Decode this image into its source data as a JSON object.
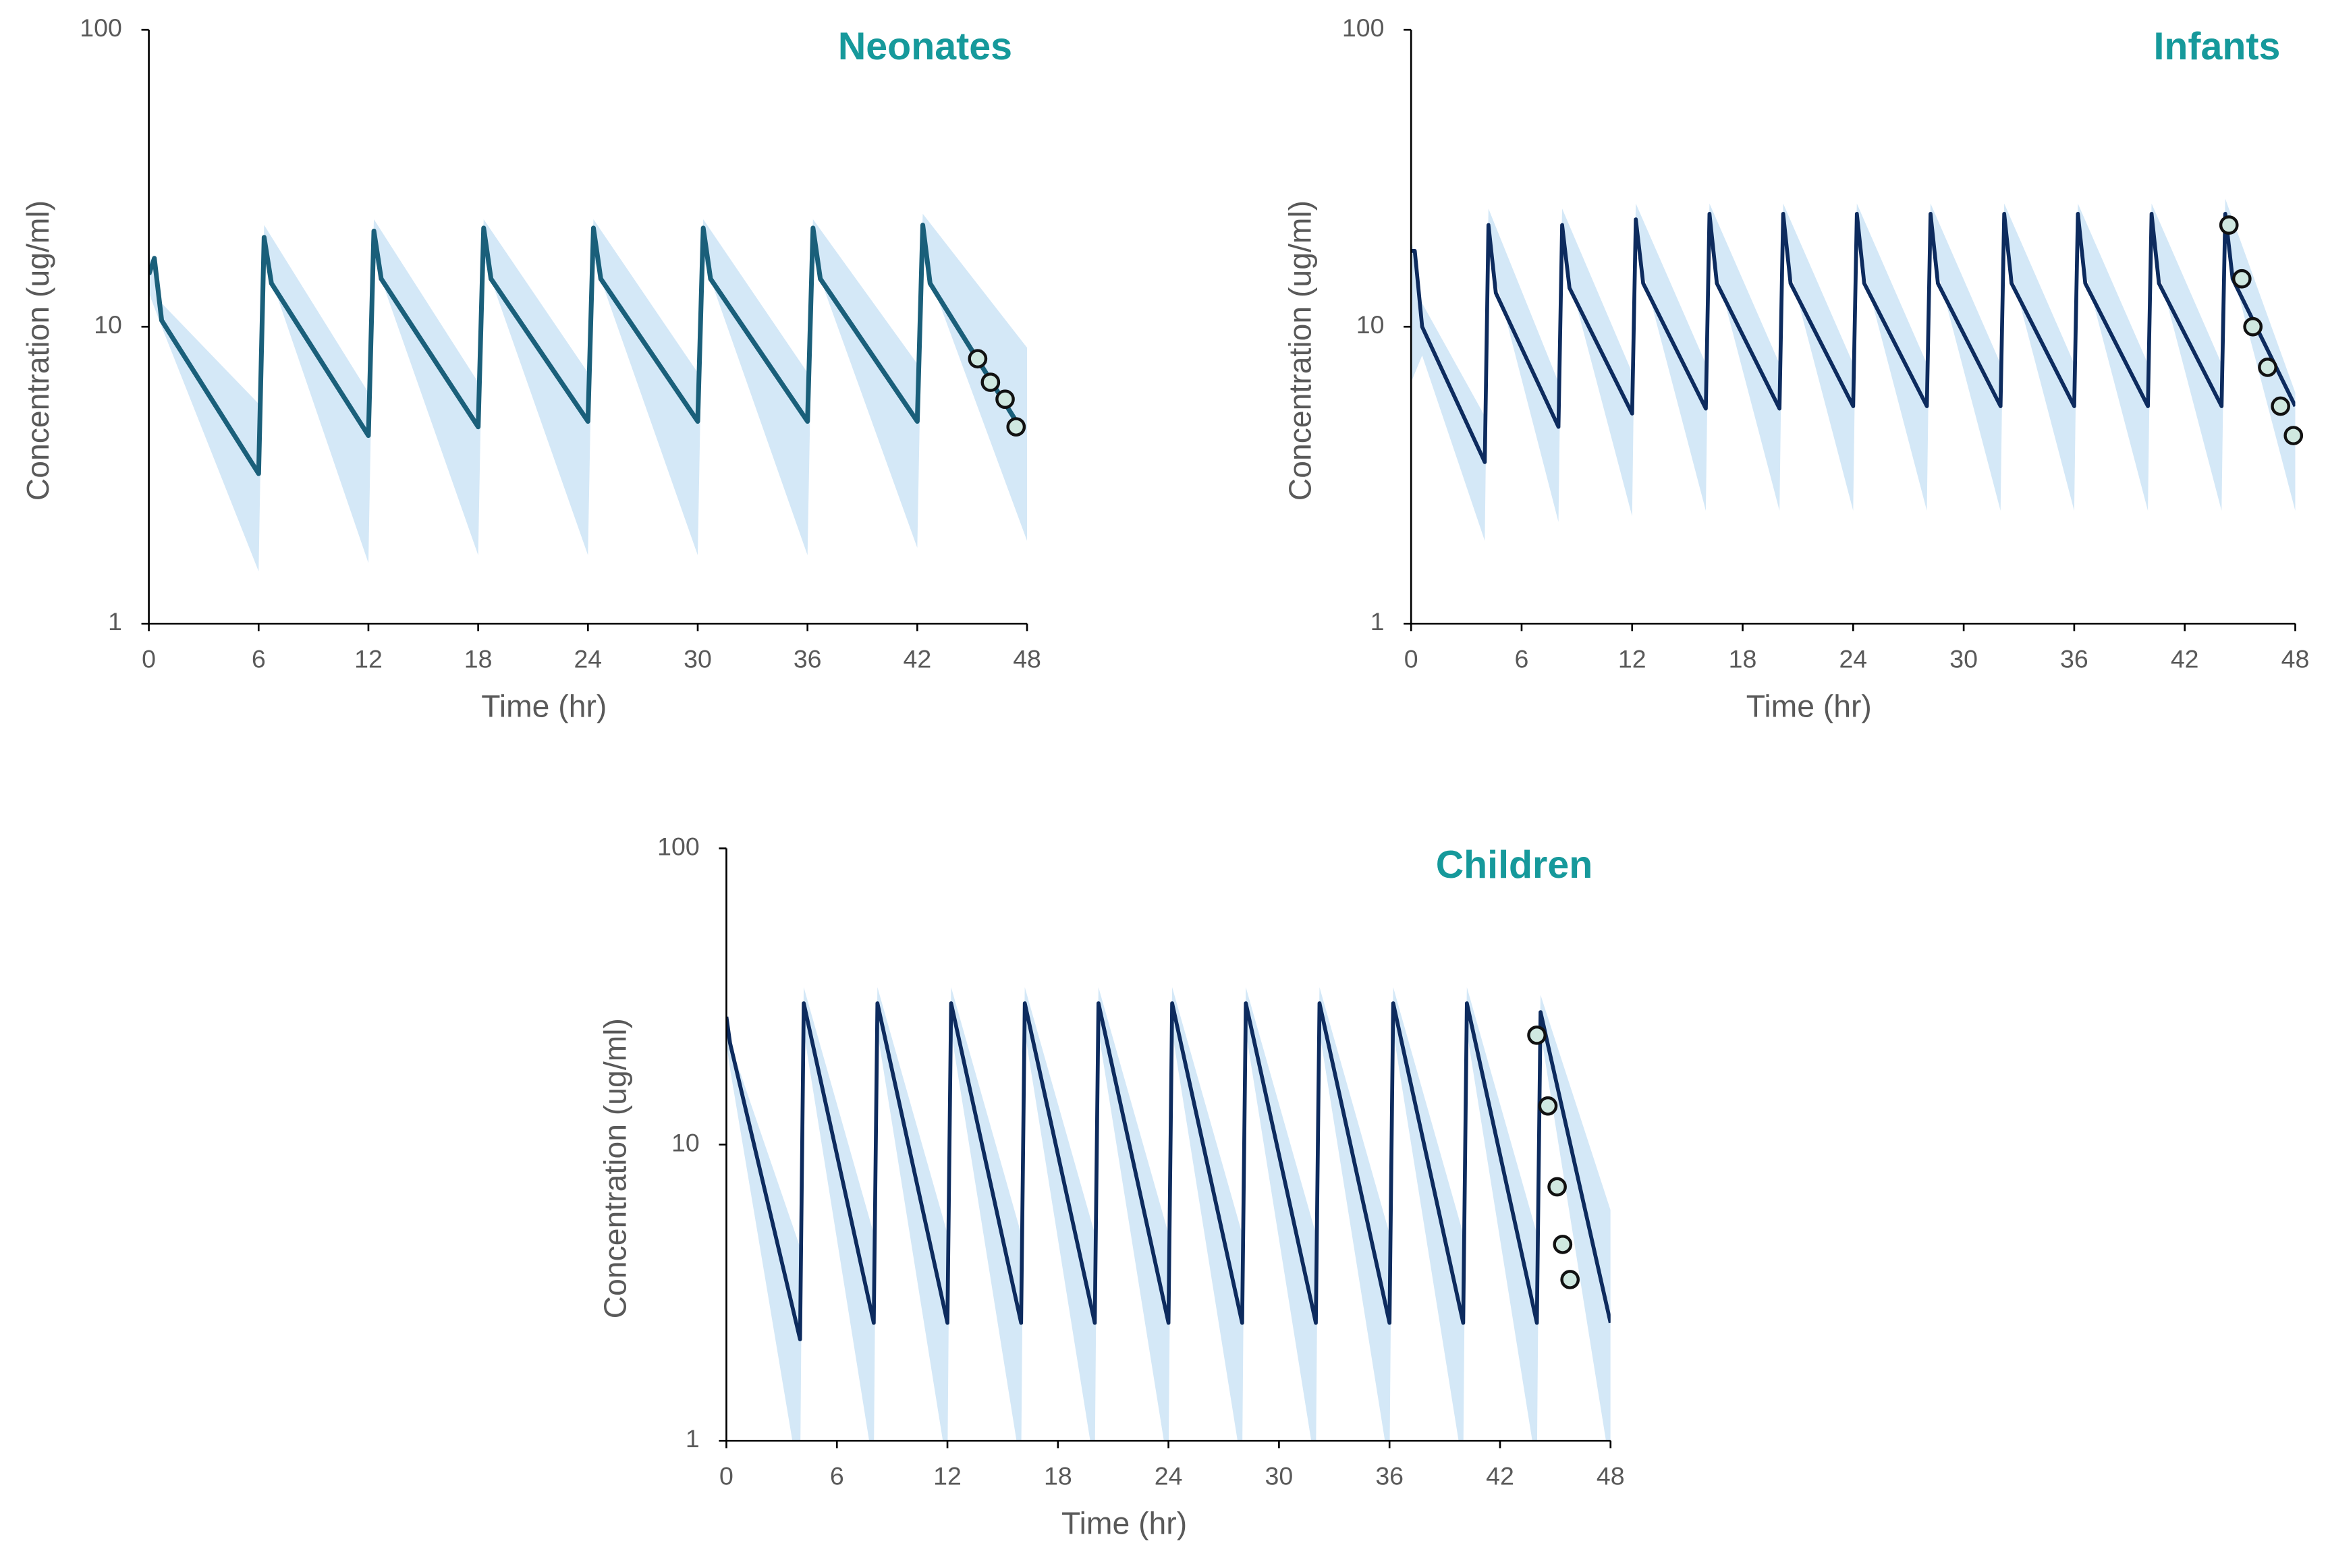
{
  "chart_data": [
    {
      "type": "line",
      "title": "Neonates",
      "x_label": "Time (hr)",
      "y_label": "Concentration (ug/ml)",
      "xlim": [
        0,
        48
      ],
      "ylim": [
        1,
        100
      ],
      "log_y": true,
      "xticks": [
        0,
        6,
        12,
        18,
        24,
        30,
        36,
        42,
        48
      ],
      "yticks": [
        1,
        10,
        100
      ],
      "series": [
        {
          "color": "#1a5f7a",
          "x": [
            0,
            0.3,
            0.7,
            6,
            6.3,
            6.7,
            12,
            12.3,
            12.7,
            18,
            18.3,
            18.7,
            24,
            24.3,
            24.7,
            30,
            30.3,
            30.7,
            36,
            36.3,
            36.7,
            42,
            42.3,
            42.7,
            47.5
          ],
          "values": [
            15,
            17,
            10.5,
            3.2,
            20,
            14,
            4.3,
            21,
            14.5,
            4.6,
            21.5,
            14.5,
            4.8,
            21.5,
            14.5,
            4.8,
            21.5,
            14.5,
            4.8,
            21.5,
            14.5,
            4.8,
            22,
            14,
            4.7
          ]
        }
      ],
      "band": {
        "color": "#d4e8f7",
        "x": [
          0,
          0.7,
          6,
          6.3,
          12,
          12.3,
          18,
          18.3,
          24,
          24.3,
          30,
          30.3,
          36,
          36.3,
          42,
          42.3,
          48
        ],
        "lower": [
          13,
          10,
          1.5,
          17,
          1.6,
          17,
          1.7,
          17,
          1.7,
          17,
          1.7,
          17,
          1.7,
          17,
          1.8,
          17,
          1.9
        ],
        "upper": [
          18,
          12,
          5.5,
          22,
          6,
          23,
          6.5,
          23,
          7,
          23,
          7,
          23,
          7,
          23,
          7.5,
          24,
          8.5
        ]
      },
      "points": {
        "color": "#cfe8e0",
        "x": [
          45.3,
          46.0,
          46.8,
          47.4
        ],
        "values": [
          7.8,
          6.5,
          5.7,
          4.6
        ]
      }
    },
    {
      "type": "line",
      "title": "Infants",
      "x_label": "Time (hr)",
      "y_label": "Concentration (ug/ml)",
      "xlim": [
        0,
        48
      ],
      "ylim": [
        1,
        100
      ],
      "log_y": true,
      "xticks": [
        0,
        6,
        12,
        18,
        24,
        30,
        36,
        42,
        48
      ],
      "yticks": [
        1,
        10,
        100
      ],
      "series": [
        {
          "color": "#0d2b5e",
          "x": [
            0,
            0.2,
            0.6,
            4,
            4.2,
            4.6,
            8,
            8.2,
            8.6,
            12,
            12.2,
            12.6,
            16,
            16.2,
            16.6,
            20,
            20.2,
            20.6,
            24,
            24.2,
            24.6,
            28,
            28.2,
            28.6,
            32,
            32.2,
            32.6,
            36,
            36.2,
            36.6,
            40,
            40.2,
            40.6,
            44,
            44.2,
            44.6,
            48
          ],
          "values": [
            18,
            18,
            10,
            3.5,
            22,
            13,
            4.6,
            22,
            13.5,
            5.1,
            23,
            14,
            5.3,
            24,
            14,
            5.3,
            24,
            14,
            5.4,
            24,
            14,
            5.4,
            24,
            14,
            5.4,
            24,
            14,
            5.4,
            24,
            14,
            5.4,
            24,
            14,
            5.4,
            24,
            14.5,
            5.4
          ]
        }
      ],
      "band": {
        "color": "#d4e8f7",
        "x": [
          0,
          0.6,
          4,
          4.2,
          8,
          8.2,
          12,
          12.2,
          16,
          16.2,
          20,
          20.2,
          24,
          24.2,
          28,
          28.2,
          32,
          32.2,
          36,
          36.2,
          40,
          40.2,
          44,
          44.2,
          48
        ],
        "lower": [
          6.5,
          8,
          1.9,
          18,
          2.2,
          18,
          2.3,
          19,
          2.4,
          19,
          2.4,
          19,
          2.4,
          19,
          2.4,
          19,
          2.4,
          19,
          2.4,
          19,
          2.4,
          19,
          2.4,
          19,
          2.4
        ],
        "upper": [
          20,
          12,
          5,
          25,
          6.5,
          25,
          7,
          26,
          7.5,
          26,
          7.5,
          26,
          7.5,
          26,
          7.5,
          26,
          7.5,
          26,
          7.5,
          26,
          7.5,
          26,
          7.5,
          27,
          6
        ]
      },
      "points": {
        "color": "#cfe8e0",
        "x": [
          44.4,
          45.1,
          45.7,
          46.5,
          47.2,
          47.9
        ],
        "values": [
          22,
          14.5,
          10,
          7.3,
          5.4,
          4.3
        ]
      }
    },
    {
      "type": "line",
      "title": "Children",
      "x_label": "Time (hr)",
      "y_label": "Concentration (ug/ml)",
      "xlim": [
        0,
        48
      ],
      "ylim": [
        1,
        100
      ],
      "log_y": true,
      "xticks": [
        0,
        6,
        12,
        18,
        24,
        30,
        36,
        42,
        48
      ],
      "yticks": [
        1,
        10,
        100
      ],
      "series": [
        {
          "color": "#0d2b5e",
          "x": [
            0,
            0.2,
            4,
            4.2,
            8,
            8.2,
            12,
            12.2,
            16,
            16.2,
            20,
            20.2,
            24,
            24.2,
            28,
            28.2,
            32,
            32.2,
            36,
            36.2,
            40,
            40.2,
            44,
            44.2,
            48
          ],
          "values": [
            27,
            22,
            2.2,
            30,
            2.5,
            30,
            2.5,
            30,
            2.5,
            30,
            2.5,
            30,
            2.5,
            30,
            2.5,
            30,
            2.5,
            30,
            2.5,
            30,
            2.5,
            30,
            2.5,
            28,
            2.5
          ]
        }
      ],
      "band": {
        "color": "#d4e8f7",
        "x": [
          0,
          0.2,
          4,
          4.2,
          8,
          8.2,
          12,
          12.2,
          16,
          16.2,
          20,
          20.2,
          24,
          24.2,
          28,
          28.2,
          32,
          32.2,
          36,
          36.2,
          40,
          40.2,
          44,
          44.2,
          48
        ],
        "lower": [
          22,
          18,
          0.7,
          24,
          0.8,
          24,
          0.8,
          24,
          0.8,
          24,
          0.8,
          24,
          0.8,
          24,
          0.8,
          24,
          0.8,
          24,
          0.8,
          24,
          0.8,
          24,
          0.8,
          24,
          0.8
        ],
        "upper": [
          30,
          22,
          4.5,
          34,
          5,
          34,
          5,
          34,
          5,
          34,
          5,
          34,
          5,
          34,
          5,
          34,
          5,
          34,
          5,
          34,
          5,
          34,
          5,
          32,
          6
        ]
      },
      "points": {
        "color": "#cfe8e0",
        "x": [
          44.0,
          44.6,
          45.1,
          45.4,
          45.8
        ],
        "values": [
          23.4,
          13.5,
          7.2,
          4.6,
          3.5
        ]
      }
    }
  ]
}
